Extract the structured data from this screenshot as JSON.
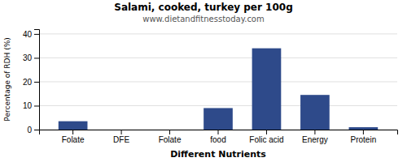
{
  "chart_data": {
    "type": "bar",
    "title": "Salami, cooked, turkey per 100g",
    "subtitle": "www.dietandfitnesstoday.com",
    "categories": [
      "Folate",
      "DFE",
      "Folate",
      "food",
      "Folic acid",
      "Energy",
      "Protein"
    ],
    "values": [
      3.5,
      0,
      0,
      9,
      34,
      14.5,
      1
    ],
    "color": "#2e4a8a",
    "xlabel": "Different Nutrients",
    "ylabel": "Percentage of RDH (%)",
    "ylim": [
      0,
      42
    ],
    "yticks": [
      0,
      10,
      20,
      30,
      40
    ],
    "grid": true
  }
}
